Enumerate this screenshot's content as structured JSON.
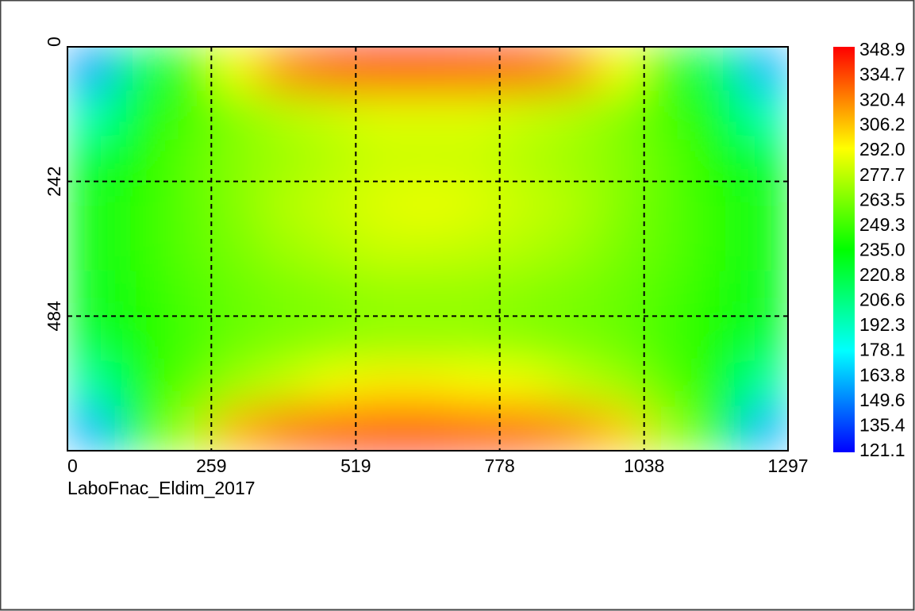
{
  "chart_data": {
    "type": "heatmap",
    "title": "LaboFnac_Eldim_2017",
    "xlim": [
      0,
      1297
    ],
    "xticks": [
      0,
      259,
      519,
      778,
      1038,
      1297
    ],
    "ylim": [
      0,
      726
    ],
    "yticks": [
      0,
      242,
      484
    ],
    "grid": true,
    "colormap": [
      "#0000ff",
      "#00ffff",
      "#00ff00",
      "#ffff00",
      "#ff0000"
    ],
    "clim": [
      121.1,
      348.9
    ],
    "colorbar_ticks": [
      348.9,
      334.7,
      320.4,
      306.2,
      {
        "value": 292,
        "label": "292.0"
      },
      277.7,
      263.5,
      249.3,
      {
        "value": 235,
        "label": "235.0"
      },
      220.8,
      206.6,
      192.3,
      178.1,
      163.8,
      149.6,
      135.4,
      121.1
    ],
    "z": [
      [
        155,
        215,
        245,
        290,
        320,
        335,
        345,
        345,
        340,
        335,
        320,
        290,
        245,
        215,
        160
      ],
      [
        195,
        230,
        250,
        265,
        275,
        280,
        285,
        285,
        285,
        280,
        275,
        265,
        250,
        230,
        195
      ],
      [
        225,
        240,
        255,
        265,
        270,
        275,
        280,
        280,
        280,
        275,
        270,
        265,
        255,
        240,
        225
      ],
      [
        230,
        245,
        255,
        265,
        275,
        280,
        285,
        288,
        285,
        280,
        275,
        265,
        255,
        245,
        230
      ],
      [
        230,
        245,
        255,
        262,
        270,
        275,
        280,
        280,
        278,
        275,
        270,
        262,
        255,
        245,
        230
      ],
      [
        228,
        243,
        252,
        258,
        262,
        265,
        268,
        268,
        268,
        265,
        262,
        258,
        252,
        243,
        228
      ],
      [
        225,
        240,
        250,
        258,
        262,
        265,
        268,
        268,
        268,
        265,
        262,
        258,
        250,
        240,
        225
      ],
      [
        200,
        235,
        255,
        270,
        280,
        290,
        295,
        295,
        292,
        290,
        280,
        270,
        255,
        235,
        200
      ],
      [
        160,
        225,
        270,
        310,
        325,
        335,
        340,
        340,
        335,
        330,
        320,
        305,
        270,
        225,
        160
      ]
    ]
  }
}
